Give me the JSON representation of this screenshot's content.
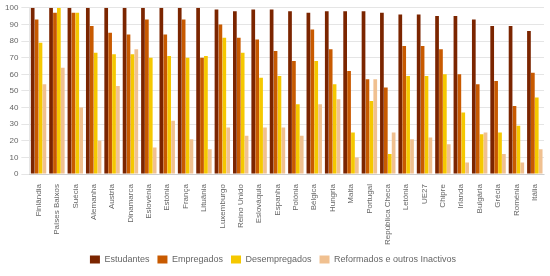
{
  "chart_data": {
    "type": "bar",
    "categories": [
      "Finlândia",
      "Países Baixos",
      "Suécia",
      "Alemanha",
      "Austria",
      "Dinamarca",
      "Eslovénia",
      "Estónia",
      "França",
      "Lituânia",
      "Luxemburgo",
      "Reino Unido",
      "Eslováquia",
      "Espanha",
      "Polónia",
      "Bélgica",
      "Hungria",
      "Malta",
      "Portugal",
      "República Checa",
      "Letónia",
      "UE27",
      "Chipre",
      "Irlanda",
      "Bulgária",
      "Grécia",
      "Roménia",
      "Itália"
    ],
    "series": [
      {
        "name": "Estudantes",
        "color": "#7B2500",
        "values": [
          100,
          100,
          100,
          100,
          100,
          100,
          100,
          100,
          100,
          100,
          99,
          98,
          99,
          99,
          98,
          97,
          98,
          98,
          98,
          97,
          96,
          96,
          95,
          95,
          93,
          89,
          89,
          86
        ]
      },
      {
        "name": "Empregados",
        "color": "#C85A00",
        "values": [
          93,
          97,
          97,
          89,
          85,
          84,
          93,
          84,
          93,
          70,
          90,
          82,
          81,
          74,
          68,
          87,
          75,
          62,
          57,
          52,
          77,
          77,
          75,
          60,
          54,
          56,
          41,
          61
        ]
      },
      {
        "name": "Desempregados",
        "color": "#F5C800",
        "values": [
          79,
          100,
          97,
          73,
          72,
          72,
          70,
          71,
          70,
          71,
          82,
          73,
          58,
          59,
          42,
          68,
          54,
          25,
          44,
          12,
          59,
          59,
          60,
          37,
          24,
          25,
          29,
          46
        ]
      },
      {
        "name": "Reformados e outros Inactivos",
        "color": "#F0C090",
        "values": [
          54,
          64,
          40,
          20,
          53,
          75,
          16,
          32,
          21,
          15,
          28,
          23,
          28,
          28,
          23,
          42,
          45,
          10,
          57,
          25,
          21,
          22,
          18,
          7,
          25,
          12,
          7,
          15
        ]
      }
    ],
    "ylim": [
      0,
      100
    ],
    "yticks": [
      0,
      10,
      20,
      30,
      40,
      50,
      60,
      70,
      80,
      90,
      100
    ],
    "grid": true,
    "legend": "bottom"
  }
}
